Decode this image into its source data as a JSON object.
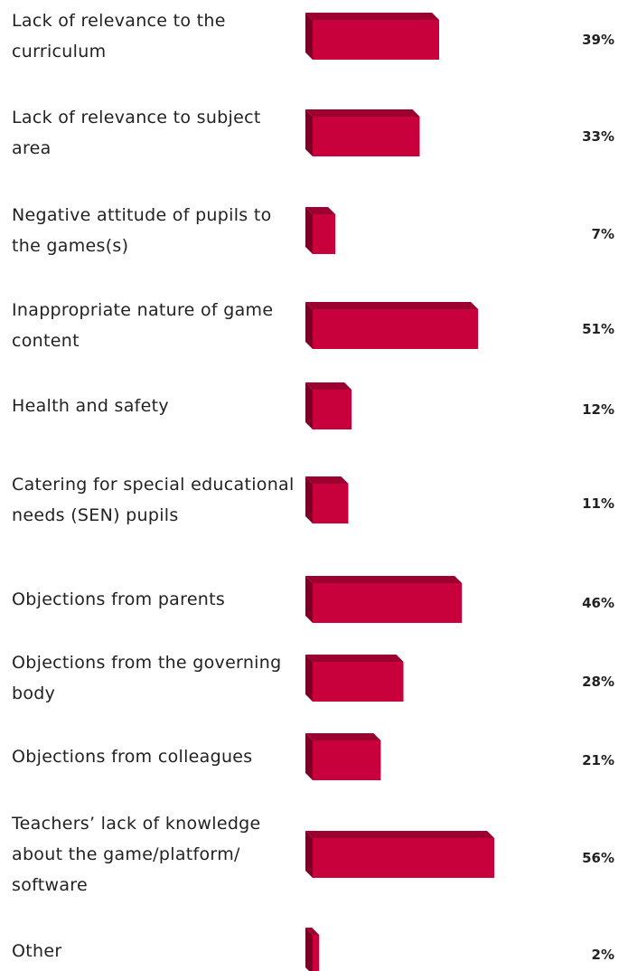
{
  "chart_data": {
    "type": "bar",
    "categories": [
      "Lack of relevance to the curriculum",
      "Lack of relevance to subject area",
      "Negative attitude of pupils to the games(s)",
      "Inappropriate nature of game content",
      "Health and safety",
      "Catering for special educational needs (SEN) pupils",
      "Objections from parents",
      "Objections from the governing body",
      "Objections from colleagues",
      "Teachers’ lack of knowledge about the game/platform/ software",
      "Other"
    ],
    "values": [
      39,
      33,
      7,
      51,
      12,
      11,
      46,
      28,
      21,
      56,
      2
    ],
    "value_labels": [
      "39%",
      "33%",
      "7%",
      "51%",
      "12%",
      "11%",
      "46%",
      "28%",
      "21%",
      "56%",
      "2%"
    ],
    "color": "#c8003c"
  }
}
